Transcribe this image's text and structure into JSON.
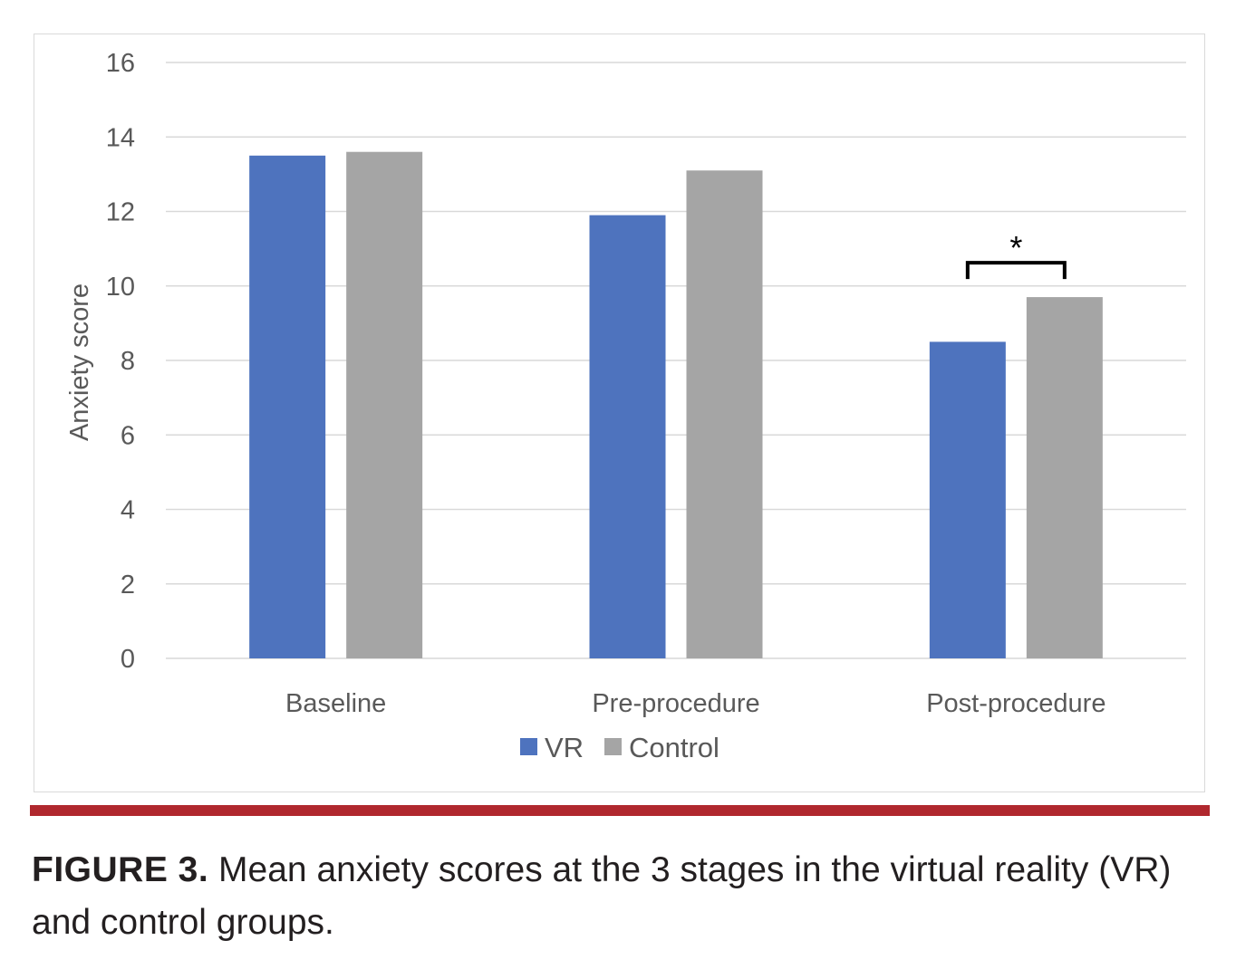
{
  "chart_data": {
    "type": "bar",
    "title": "",
    "xlabel": "",
    "ylabel": "Anxiety score",
    "ylim": [
      0,
      16
    ],
    "yticks": [
      0,
      2,
      4,
      6,
      8,
      10,
      12,
      14,
      16
    ],
    "grid": true,
    "categories": [
      "Baseline",
      "Pre-procedure",
      "Post-procedure"
    ],
    "series": [
      {
        "name": "VR",
        "color": "#4e73be",
        "values": [
          13.5,
          11.9,
          8.5
        ]
      },
      {
        "name": "Control",
        "color": "#a5a5a5",
        "values": [
          13.6,
          13.1,
          9.7
        ]
      }
    ],
    "annotations": [
      {
        "category": "Post-procedure",
        "text": "*",
        "type": "significance-bracket"
      }
    ],
    "legend_position": "bottom-center"
  },
  "caption": {
    "label": "FIGURE 3.",
    "text": "Mean anxiety scores at the 3 stages in the virtual reality (VR) and control groups."
  },
  "colors": {
    "rule": "#b0282e",
    "grid": "#d9d9d9",
    "text": "#595959"
  }
}
